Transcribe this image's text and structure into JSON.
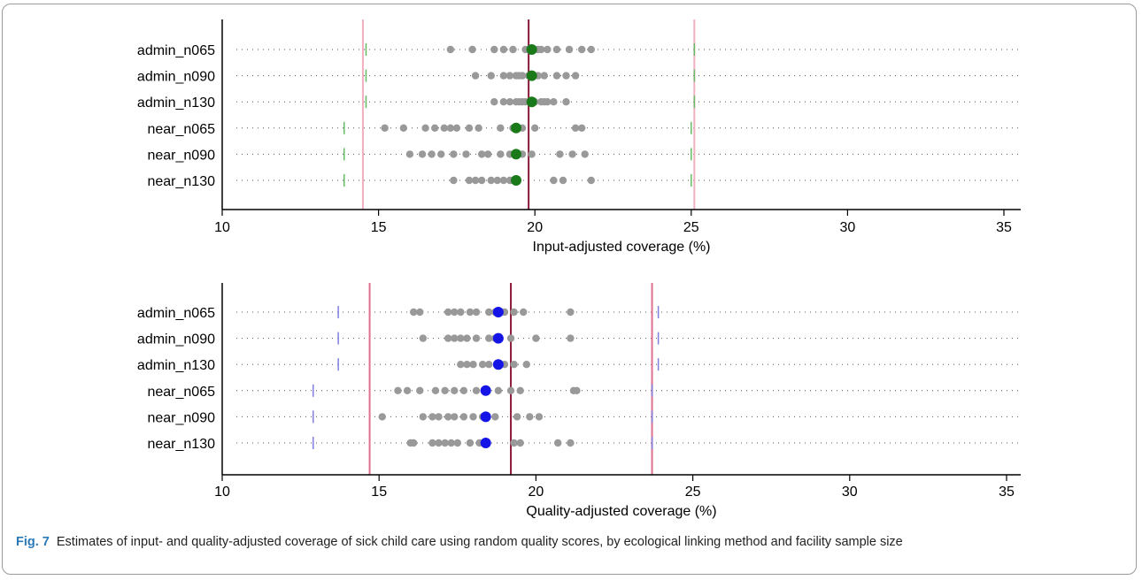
{
  "caption": {
    "label": "Fig. 7",
    "text": "Estimates of input- and quality-adjusted coverage of sick child care using random quality scores, by ecological linking method and facility sample size"
  },
  "chart_data": [
    {
      "type": "scatter",
      "xlabel": "Input-adjusted coverage (%)",
      "xlim": [
        10,
        35.5
      ],
      "xticks": [
        10,
        15,
        20,
        25,
        30,
        35
      ],
      "categories": [
        "admin_n065",
        "admin_n090",
        "admin_n130",
        "near_n065",
        "near_n090",
        "near_n130"
      ],
      "colors": {
        "estimate": "#1a7a1a",
        "ci_tick": "#66bb66",
        "ref_line": "#8b1a3a",
        "ref_bound": "#f0b0c0",
        "points": "#999999"
      },
      "reference": {
        "value": 19.8,
        "lower": 14.5,
        "upper": 25.1
      },
      "rows": [
        {
          "category": "admin_n065",
          "estimate": 19.9,
          "lower": 14.6,
          "upper": 25.1,
          "points": [
            17.3,
            18.0,
            18.7,
            19.0,
            19.3,
            19.7,
            19.8,
            19.9,
            20.0,
            20.1,
            20.2,
            20.4,
            20.7,
            21.1,
            21.5,
            21.8
          ]
        },
        {
          "category": "admin_n090",
          "estimate": 19.9,
          "lower": 14.6,
          "upper": 25.1,
          "points": [
            18.1,
            18.6,
            19.0,
            19.2,
            19.4,
            19.5,
            19.6,
            19.8,
            20.1,
            20.3,
            20.7,
            21.0,
            21.3
          ]
        },
        {
          "category": "admin_n130",
          "estimate": 19.9,
          "lower": 14.6,
          "upper": 25.1,
          "points": [
            18.7,
            19.0,
            19.2,
            19.4,
            19.5,
            19.6,
            19.7,
            20.0,
            20.2,
            20.3,
            20.4,
            20.6,
            21.0
          ]
        },
        {
          "category": "near_n065",
          "estimate": 19.4,
          "lower": 13.9,
          "upper": 25.0,
          "points": [
            15.2,
            15.8,
            16.5,
            16.8,
            17.1,
            17.3,
            17.5,
            17.9,
            18.2,
            18.9,
            19.3,
            19.6,
            20.0,
            21.3,
            21.5
          ]
        },
        {
          "category": "near_n090",
          "estimate": 19.4,
          "lower": 13.9,
          "upper": 25.0,
          "points": [
            16.0,
            16.4,
            16.7,
            17.0,
            17.4,
            17.8,
            18.3,
            18.5,
            18.9,
            19.2,
            19.6,
            19.9,
            20.8,
            21.2,
            21.6
          ]
        },
        {
          "category": "near_n130",
          "estimate": 19.4,
          "lower": 13.9,
          "upper": 25.0,
          "points": [
            17.4,
            17.9,
            18.1,
            18.3,
            18.6,
            18.8,
            19.0,
            19.2,
            19.3,
            20.6,
            20.9,
            21.8
          ]
        }
      ]
    },
    {
      "type": "scatter",
      "xlabel": "Quality-adjusted coverage (%)",
      "xlim": [
        10,
        35.5
      ],
      "xticks": [
        10,
        15,
        20,
        25,
        30,
        35
      ],
      "categories": [
        "admin_n065",
        "admin_n090",
        "admin_n130",
        "near_n065",
        "near_n090",
        "near_n130"
      ],
      "colors": {
        "estimate": "#1414e6",
        "ci_tick": "#8080e0",
        "ref_line": "#8b1a3a",
        "ref_bound": "#e07090",
        "points": "#999999"
      },
      "reference": {
        "value": 19.2,
        "lower": 14.7,
        "upper": 23.7
      },
      "rows": [
        {
          "category": "admin_n065",
          "estimate": 18.8,
          "lower": 13.7,
          "upper": 23.9,
          "points": [
            16.1,
            16.3,
            17.2,
            17.4,
            17.6,
            17.9,
            18.1,
            18.5,
            18.7,
            19.0,
            19.3,
            19.6,
            21.1
          ]
        },
        {
          "category": "admin_n090",
          "estimate": 18.8,
          "lower": 13.7,
          "upper": 23.9,
          "points": [
            16.4,
            17.2,
            17.4,
            17.6,
            17.8,
            18.1,
            18.5,
            18.7,
            19.2,
            20.0,
            21.1
          ]
        },
        {
          "category": "admin_n130",
          "estimate": 18.8,
          "lower": 13.7,
          "upper": 23.9,
          "points": [
            17.6,
            17.8,
            18.0,
            18.3,
            18.5,
            19.0,
            19.3,
            19.7
          ]
        },
        {
          "category": "near_n065",
          "estimate": 18.4,
          "lower": 12.9,
          "upper": 23.7,
          "points": [
            15.6,
            15.9,
            16.3,
            16.8,
            17.1,
            17.4,
            17.7,
            18.1,
            18.8,
            19.2,
            19.5,
            21.2,
            21.3
          ]
        },
        {
          "category": "near_n090",
          "estimate": 18.4,
          "lower": 12.9,
          "upper": 23.7,
          "points": [
            15.1,
            16.4,
            16.7,
            16.9,
            17.2,
            17.4,
            17.7,
            18.0,
            18.3,
            18.7,
            19.4,
            19.8,
            20.1
          ]
        },
        {
          "category": "near_n130",
          "estimate": 18.4,
          "lower": 12.9,
          "upper": 23.7,
          "points": [
            16.0,
            16.1,
            16.7,
            16.9,
            17.1,
            17.3,
            17.5,
            17.9,
            18.2,
            19.3,
            19.5,
            20.7,
            21.1
          ]
        }
      ]
    }
  ]
}
